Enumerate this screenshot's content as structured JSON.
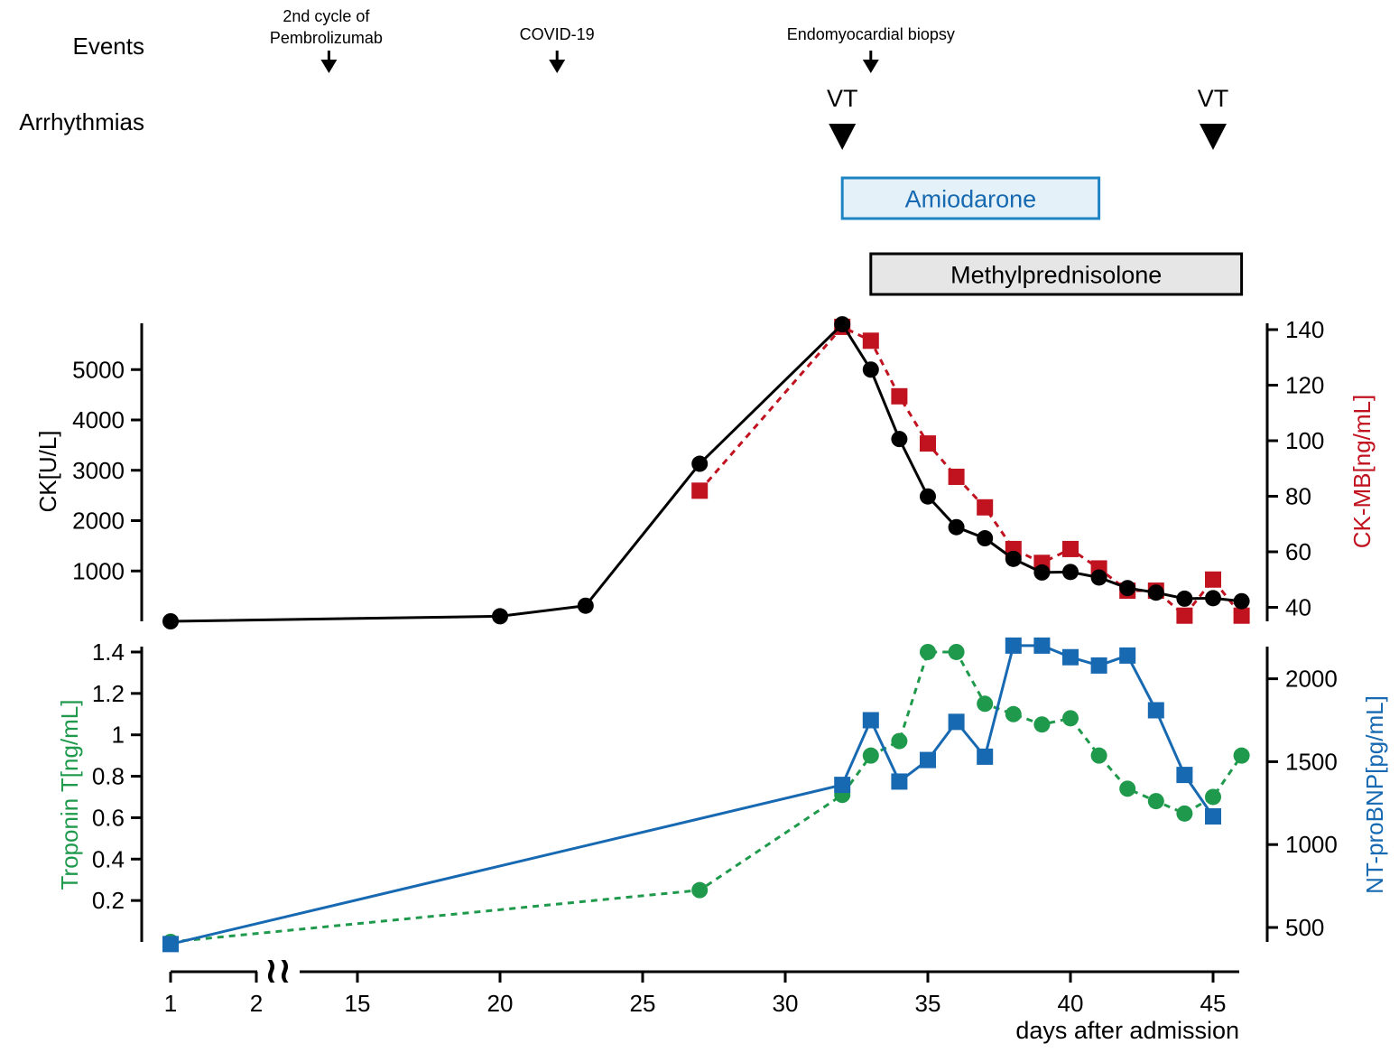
{
  "colors": {
    "ck": "#000000",
    "ckmb": "#c0121f",
    "troponin": "#1f9a4c",
    "ntprobnp": "#1769b2",
    "amio_fill": "#e4f1f8",
    "amio_border": "#1f84c4",
    "methyl_fill": "#e6e6e6"
  },
  "rows": {
    "events_label": "Events",
    "arrhythmias_label": "Arrhythmias"
  },
  "events": [
    {
      "day": 14,
      "label_line1": "2nd cycle of",
      "label_line2": "Pembrolizumab"
    },
    {
      "day": 22,
      "label_line1": "COVID-19",
      "label_line2": ""
    },
    {
      "day": 33,
      "label_line1": "Endomyocardial biopsy",
      "label_line2": ""
    }
  ],
  "arrhythmias": [
    {
      "day": 32,
      "label": "VT"
    },
    {
      "day": 45,
      "label": "VT"
    }
  ],
  "treatments": [
    {
      "name": "Amiodarone",
      "start_day": 32,
      "end_day": 41
    },
    {
      "name": "Methylprednisolone",
      "start_day": 33,
      "end_day": 46
    }
  ],
  "x_axis": {
    "label": "days after admission",
    "ticks": [
      1,
      2,
      15,
      20,
      25,
      30,
      35,
      40,
      45
    ],
    "break_symbol": "≀≀"
  },
  "chart_data": [
    {
      "type": "line",
      "title": "",
      "ylabel_left": "CK[U/L]",
      "ylabel_right": "CK-MB[ng/mL]",
      "ylim_left": [
        0,
        6000
      ],
      "ylim_right": [
        35,
        141
      ],
      "yticks_left": [
        1000,
        2000,
        3000,
        4000,
        5000
      ],
      "yticks_right": [
        40,
        60,
        80,
        100,
        120,
        140
      ],
      "series": [
        {
          "name": "CK",
          "axis": "left",
          "marker": "circle",
          "line": "solid",
          "x": [
            1,
            20,
            23,
            27,
            32,
            33,
            34,
            35,
            36,
            37,
            38,
            39,
            40,
            41,
            42,
            43,
            44,
            45,
            46
          ],
          "values": [
            0,
            100,
            310,
            3130,
            5900,
            5000,
            3620,
            2480,
            1870,
            1650,
            1240,
            970,
            980,
            870,
            660,
            570,
            450,
            460,
            400
          ]
        },
        {
          "name": "CK-MB",
          "axis": "right",
          "marker": "square",
          "line": "dashed",
          "x": [
            27,
            32,
            33,
            34,
            35,
            36,
            37,
            38,
            39,
            40,
            41,
            42,
            43,
            44,
            45,
            46
          ],
          "values": [
            82,
            141,
            136,
            116,
            99,
            87,
            76,
            61,
            56,
            61,
            54,
            46,
            46,
            37,
            50,
            37
          ]
        }
      ]
    },
    {
      "type": "line",
      "title": "",
      "ylabel_left": "Troponin T[ng/mL]",
      "ylabel_right": "NT-proBNP[pg/mL]",
      "ylim_left": [
        0,
        1.42
      ],
      "ylim_right": [
        400,
        2200
      ],
      "yticks_left": [
        0.2,
        0.4,
        0.6,
        0.8,
        1,
        1.2,
        1.4
      ],
      "ytick_labels_left": [
        "0.2",
        "0.4",
        "0.6",
        "0.8",
        "1",
        "1.2",
        "1.4"
      ],
      "yticks_right": [
        500,
        1000,
        1500,
        2000
      ],
      "series": [
        {
          "name": "Troponin T",
          "axis": "left",
          "marker": "circle",
          "line": "dashed",
          "x": [
            1,
            27,
            32,
            33,
            34,
            35,
            36,
            37,
            38,
            39,
            40,
            41,
            42,
            43,
            44,
            45,
            46
          ],
          "values": [
            0,
            0.25,
            0.71,
            0.9,
            0.97,
            1.4,
            1.4,
            1.15,
            1.1,
            1.05,
            1.08,
            0.9,
            0.74,
            0.68,
            0.62,
            0.7,
            0.9
          ]
        },
        {
          "name": "NT-proBNP",
          "axis": "right",
          "marker": "square",
          "line": "solid",
          "x": [
            1,
            32,
            33,
            34,
            35,
            36,
            37,
            38,
            39,
            40,
            41,
            42,
            43,
            44,
            45
          ],
          "values": [
            400,
            1360,
            1750,
            1380,
            1510,
            1740,
            1530,
            2200,
            2200,
            2130,
            2080,
            2140,
            1810,
            1420,
            1170
          ]
        }
      ]
    }
  ]
}
